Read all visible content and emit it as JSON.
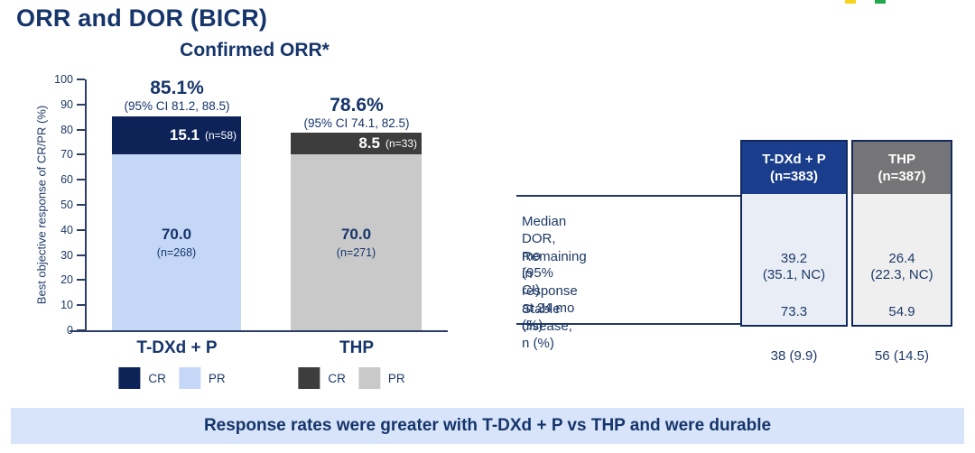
{
  "page": {
    "title": "ORR and DOR (BICR)",
    "banner": "Response rates were greater with T-DXd + P vs THP and were durable"
  },
  "logo": {
    "marks": [
      {
        "name": "yellow-mark",
        "color": "#f5d31d"
      },
      {
        "name": "green-mark",
        "color": "#22a84d"
      }
    ]
  },
  "colors": {
    "accent_navy": "#16356b",
    "axis": "#2c3e63",
    "banner_bg": "#d7e4f9",
    "table_border": "#12295e"
  },
  "chart_data": {
    "type": "bar",
    "stacked": true,
    "title": "Confirmed ORR*",
    "ylabel": "Best objective response of CR/PR (%)",
    "xlabel": "",
    "ylim": [
      0,
      100
    ],
    "yticks": [
      0,
      10,
      20,
      30,
      40,
      50,
      60,
      70,
      80,
      90,
      100
    ],
    "grid": false,
    "legend_position": "below-each-bar",
    "categories": [
      "T-DXd + P",
      "THP"
    ],
    "series": [
      {
        "name": "CR",
        "values": [
          15.1,
          8.5
        ]
      },
      {
        "name": "PR",
        "values": [
          70.0,
          70.0
        ]
      }
    ],
    "groups": [
      {
        "category": "T-DXd + P",
        "orr": 85.1,
        "orr_label": "85.1%",
        "ci_label": "(95% CI 81.2, 88.5)",
        "cr": {
          "label": "CR",
          "value": 15.1,
          "value_label": "15.1",
          "n_label": "(n=58)",
          "color": "#0d2357"
        },
        "pr": {
          "label": "PR",
          "value": 70.0,
          "value_label": "70.0",
          "n_label": "(n=268)",
          "color": "#c5d7f6"
        }
      },
      {
        "category": "THP",
        "orr": 78.6,
        "orr_label": "78.6%",
        "ci_label": "(95% CI 74.1, 82.5)",
        "cr": {
          "label": "CR",
          "value": 8.5,
          "value_label": "8.5",
          "n_label": "(n=33)",
          "color": "#3d3d3d"
        },
        "pr": {
          "label": "PR",
          "value": 70.0,
          "value_label": "70.0",
          "n_label": "(n=271)",
          "color": "#c9c9c9"
        }
      }
    ]
  },
  "table": {
    "columns": [
      {
        "header": "T-DXd + P\n(n=383)",
        "header_bg": "#1a3e8c",
        "body_bg": "#e8edf6"
      },
      {
        "header": "THP\n(n=387)",
        "header_bg": "#757577",
        "body_bg": "#efeff0"
      }
    ],
    "rows": [
      {
        "label": "Median DOR, mo (95% CI)",
        "values": [
          "39.2\n(35.1, NC)",
          "26.4\n(22.3, NC)"
        ]
      },
      {
        "label": "Remaining in response\nat 24 mo (%)",
        "values": [
          "73.3",
          "54.9"
        ]
      },
      {
        "label": "Stable disease, n (%)",
        "values": [
          "38 (9.9)",
          "56 (14.5)"
        ]
      }
    ]
  }
}
